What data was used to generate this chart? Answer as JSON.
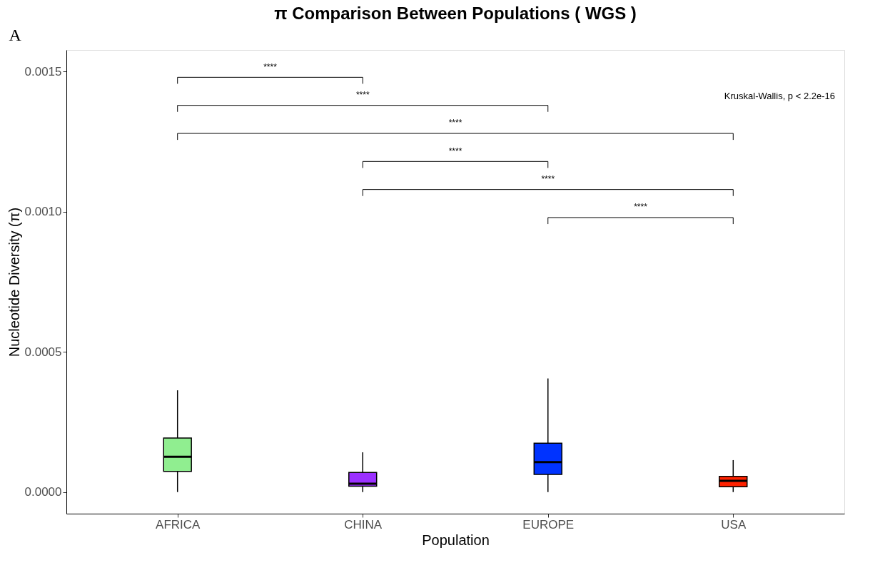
{
  "chart_data": {
    "type": "box",
    "title": "π Comparison Between Populations ( WGS )",
    "xlabel": "Population",
    "ylabel": "Nucleotide Diversity (π)",
    "categories": [
      "AFRICA",
      "CHINA",
      "EUROPE",
      "USA"
    ],
    "colors": [
      "#90ee90",
      "#9b30ff",
      "#0033ff",
      "#ff2200"
    ],
    "boxes": [
      {
        "low": 0,
        "q1": 7.4e-05,
        "median": 0.000126,
        "q3": 0.000193,
        "high": 0.000363
      },
      {
        "low": 0,
        "q1": 2.1e-05,
        "median": 3e-05,
        "q3": 7e-05,
        "high": 0.000142
      },
      {
        "low": 0,
        "q1": 6.3e-05,
        "median": 0.000107,
        "q3": 0.000174,
        "high": 0.000405
      },
      {
        "low": 0,
        "q1": 1.9e-05,
        "median": 4e-05,
        "q3": 5.6e-05,
        "high": 0.000114
      }
    ],
    "ylim": [
      -7.7e-05,
      0.001577
    ],
    "yticks": [
      {
        "value": 0,
        "label": "0.0000"
      },
      {
        "value": 0.0005,
        "label": "0.0005"
      },
      {
        "value": 0.001,
        "label": "0.0010"
      },
      {
        "value": 0.0015,
        "label": "0.0015"
      }
    ],
    "grid": false,
    "annotations": [
      "A",
      "****",
      "****",
      "****",
      "****",
      "****",
      "****",
      "Kruskal-Wallis, p < 2.2e-16"
    ]
  }
}
